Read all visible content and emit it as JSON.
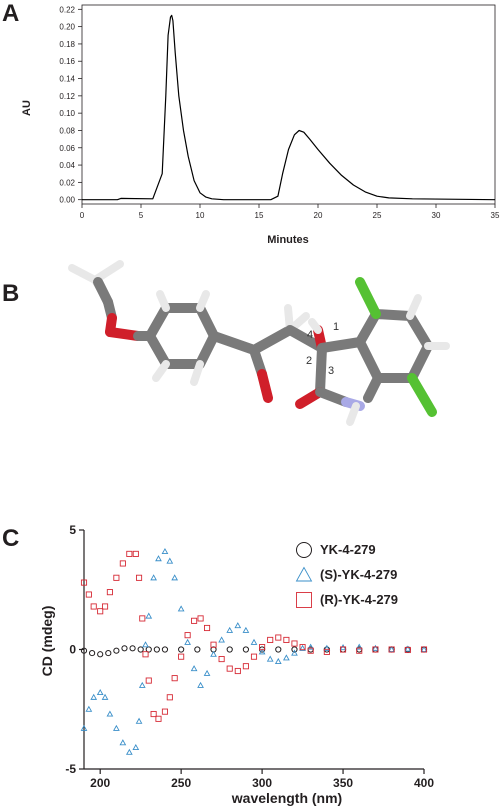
{
  "panels": {
    "a": {
      "label": "A"
    },
    "b": {
      "label": "B"
    },
    "c": {
      "label": "C"
    }
  },
  "chart_data": [
    {
      "type": "line",
      "xlabel": "Minutes",
      "ylabel": "AU",
      "xlim": [
        0,
        35
      ],
      "ylim": [
        -0.005,
        0.225
      ],
      "x_ticks": [
        0,
        5,
        10,
        15,
        20,
        25,
        30,
        35
      ],
      "y_ticks": [
        0.0,
        0.02,
        0.04,
        0.06,
        0.08,
        0.1,
        0.12,
        0.14,
        0.16,
        0.18,
        0.2,
        0.22
      ],
      "y_tick_labels": [
        "0.00",
        "0.02",
        "0.04",
        "0.06",
        "0.08",
        "0.10",
        "0.12",
        "0.14",
        "0.16",
        "0.18",
        "0.20",
        "0.22"
      ],
      "grid": false,
      "series": [
        {
          "color": "#000000",
          "x": [
            0,
            3.0,
            3.3,
            6.0,
            6.8,
            7.1,
            7.3,
            7.5,
            7.6,
            7.7,
            7.9,
            8.2,
            8.6,
            9.0,
            9.5,
            10.0,
            10.5,
            11.0,
            12.0,
            16.0,
            16.6,
            17.0,
            17.5,
            18.0,
            18.4,
            18.8,
            19.3,
            20.0,
            21.0,
            22.0,
            23.0,
            24.0,
            25.0,
            26.0,
            28.0,
            35.0
          ],
          "y": [
            0.0,
            0.0,
            0.0015,
            0.001,
            0.03,
            0.12,
            0.19,
            0.211,
            0.213,
            0.207,
            0.17,
            0.12,
            0.08,
            0.05,
            0.022,
            0.008,
            0.003,
            0.001,
            0.0,
            0.0,
            0.004,
            0.03,
            0.058,
            0.075,
            0.08,
            0.078,
            0.07,
            0.058,
            0.042,
            0.028,
            0.017,
            0.009,
            0.004,
            0.002,
            0.001,
            0.0
          ]
        }
      ]
    },
    {
      "type": "scatter",
      "xlabel": "wavelength (nm)",
      "ylabel": "CD (mdeg)",
      "xlim": [
        190,
        400
      ],
      "ylim": [
        -5,
        5
      ],
      "x_ticks": [
        200,
        250,
        300,
        350,
        400
      ],
      "y_ticks": [
        -5,
        0,
        5
      ],
      "legend_position": "top-right",
      "grid": false,
      "series": [
        {
          "name": "YK-4-279",
          "marker": "circle",
          "color": "#231f20",
          "x": [
            190,
            195,
            200,
            205,
            210,
            215,
            220,
            225,
            230,
            235,
            240,
            250,
            260,
            270,
            280,
            290,
            300,
            310,
            320,
            330,
            340,
            350,
            360,
            370,
            380,
            390,
            400
          ],
          "y": [
            -0.05,
            -0.15,
            -0.2,
            -0.15,
            -0.05,
            0.05,
            0.05,
            0.0,
            0.0,
            0.0,
            0.0,
            0.0,
            0.0,
            0.0,
            0.0,
            0.0,
            0.0,
            0.0,
            0.0,
            0.0,
            0.0,
            0.0,
            0.0,
            0.0,
            0.0,
            0.0,
            0.0
          ]
        },
        {
          "name": "(S)-YK-4-279",
          "marker": "triangle",
          "color": "#3a8fc9",
          "x": [
            190,
            193,
            196,
            200,
            203,
            206,
            210,
            214,
            218,
            222,
            224,
            226,
            228,
            230,
            233,
            236,
            240,
            243,
            246,
            250,
            254,
            258,
            262,
            266,
            270,
            275,
            280,
            285,
            290,
            295,
            300,
            305,
            310,
            315,
            320,
            325,
            330,
            340,
            350,
            360,
            370,
            380,
            390,
            400
          ],
          "y": [
            -3.3,
            -2.5,
            -2.0,
            -1.8,
            -2.0,
            -2.7,
            -3.3,
            -3.9,
            -4.3,
            -4.1,
            -3.0,
            -1.5,
            0.2,
            1.4,
            3.0,
            3.8,
            4.1,
            3.7,
            3.0,
            1.7,
            0.3,
            -0.8,
            -1.5,
            -1.0,
            -0.2,
            0.4,
            0.8,
            1.0,
            0.8,
            0.3,
            -0.1,
            -0.4,
            -0.5,
            -0.35,
            -0.15,
            0.05,
            0.1,
            0.05,
            0.08,
            0.1,
            0.05,
            0.0,
            0.02,
            0.0
          ]
        },
        {
          "name": "(R)-YK-4-279",
          "marker": "square",
          "color": "#d62a35",
          "x": [
            190,
            193,
            196,
            200,
            203,
            206,
            210,
            214,
            218,
            222,
            224,
            226,
            228,
            230,
            233,
            236,
            240,
            243,
            246,
            250,
            254,
            258,
            262,
            266,
            270,
            275,
            280,
            285,
            290,
            295,
            300,
            305,
            310,
            315,
            320,
            325,
            330,
            340,
            350,
            360,
            370,
            380,
            390,
            400
          ],
          "y": [
            2.8,
            2.3,
            1.8,
            1.6,
            1.8,
            2.4,
            3.0,
            3.6,
            4.0,
            4.0,
            3.0,
            1.3,
            -0.2,
            -1.3,
            -2.7,
            -2.9,
            -2.6,
            -2.0,
            -1.2,
            -0.3,
            0.6,
            1.2,
            1.3,
            0.9,
            0.2,
            -0.4,
            -0.8,
            -0.9,
            -0.7,
            -0.3,
            0.1,
            0.4,
            0.5,
            0.4,
            0.25,
            0.1,
            -0.05,
            -0.1,
            0.0,
            -0.05,
            0.0,
            0.0,
            -0.02,
            0.0
          ]
        }
      ]
    }
  ],
  "molecule": {
    "atom_labels": [
      "1",
      "2",
      "3",
      "4"
    ],
    "colors": {
      "carbon": "#7a7a7a",
      "hydrogen": "#e6e6e6",
      "oxygen": "#d01f2a",
      "nitrogen": "#a9a9e6",
      "chlorine": "#55c133"
    }
  }
}
